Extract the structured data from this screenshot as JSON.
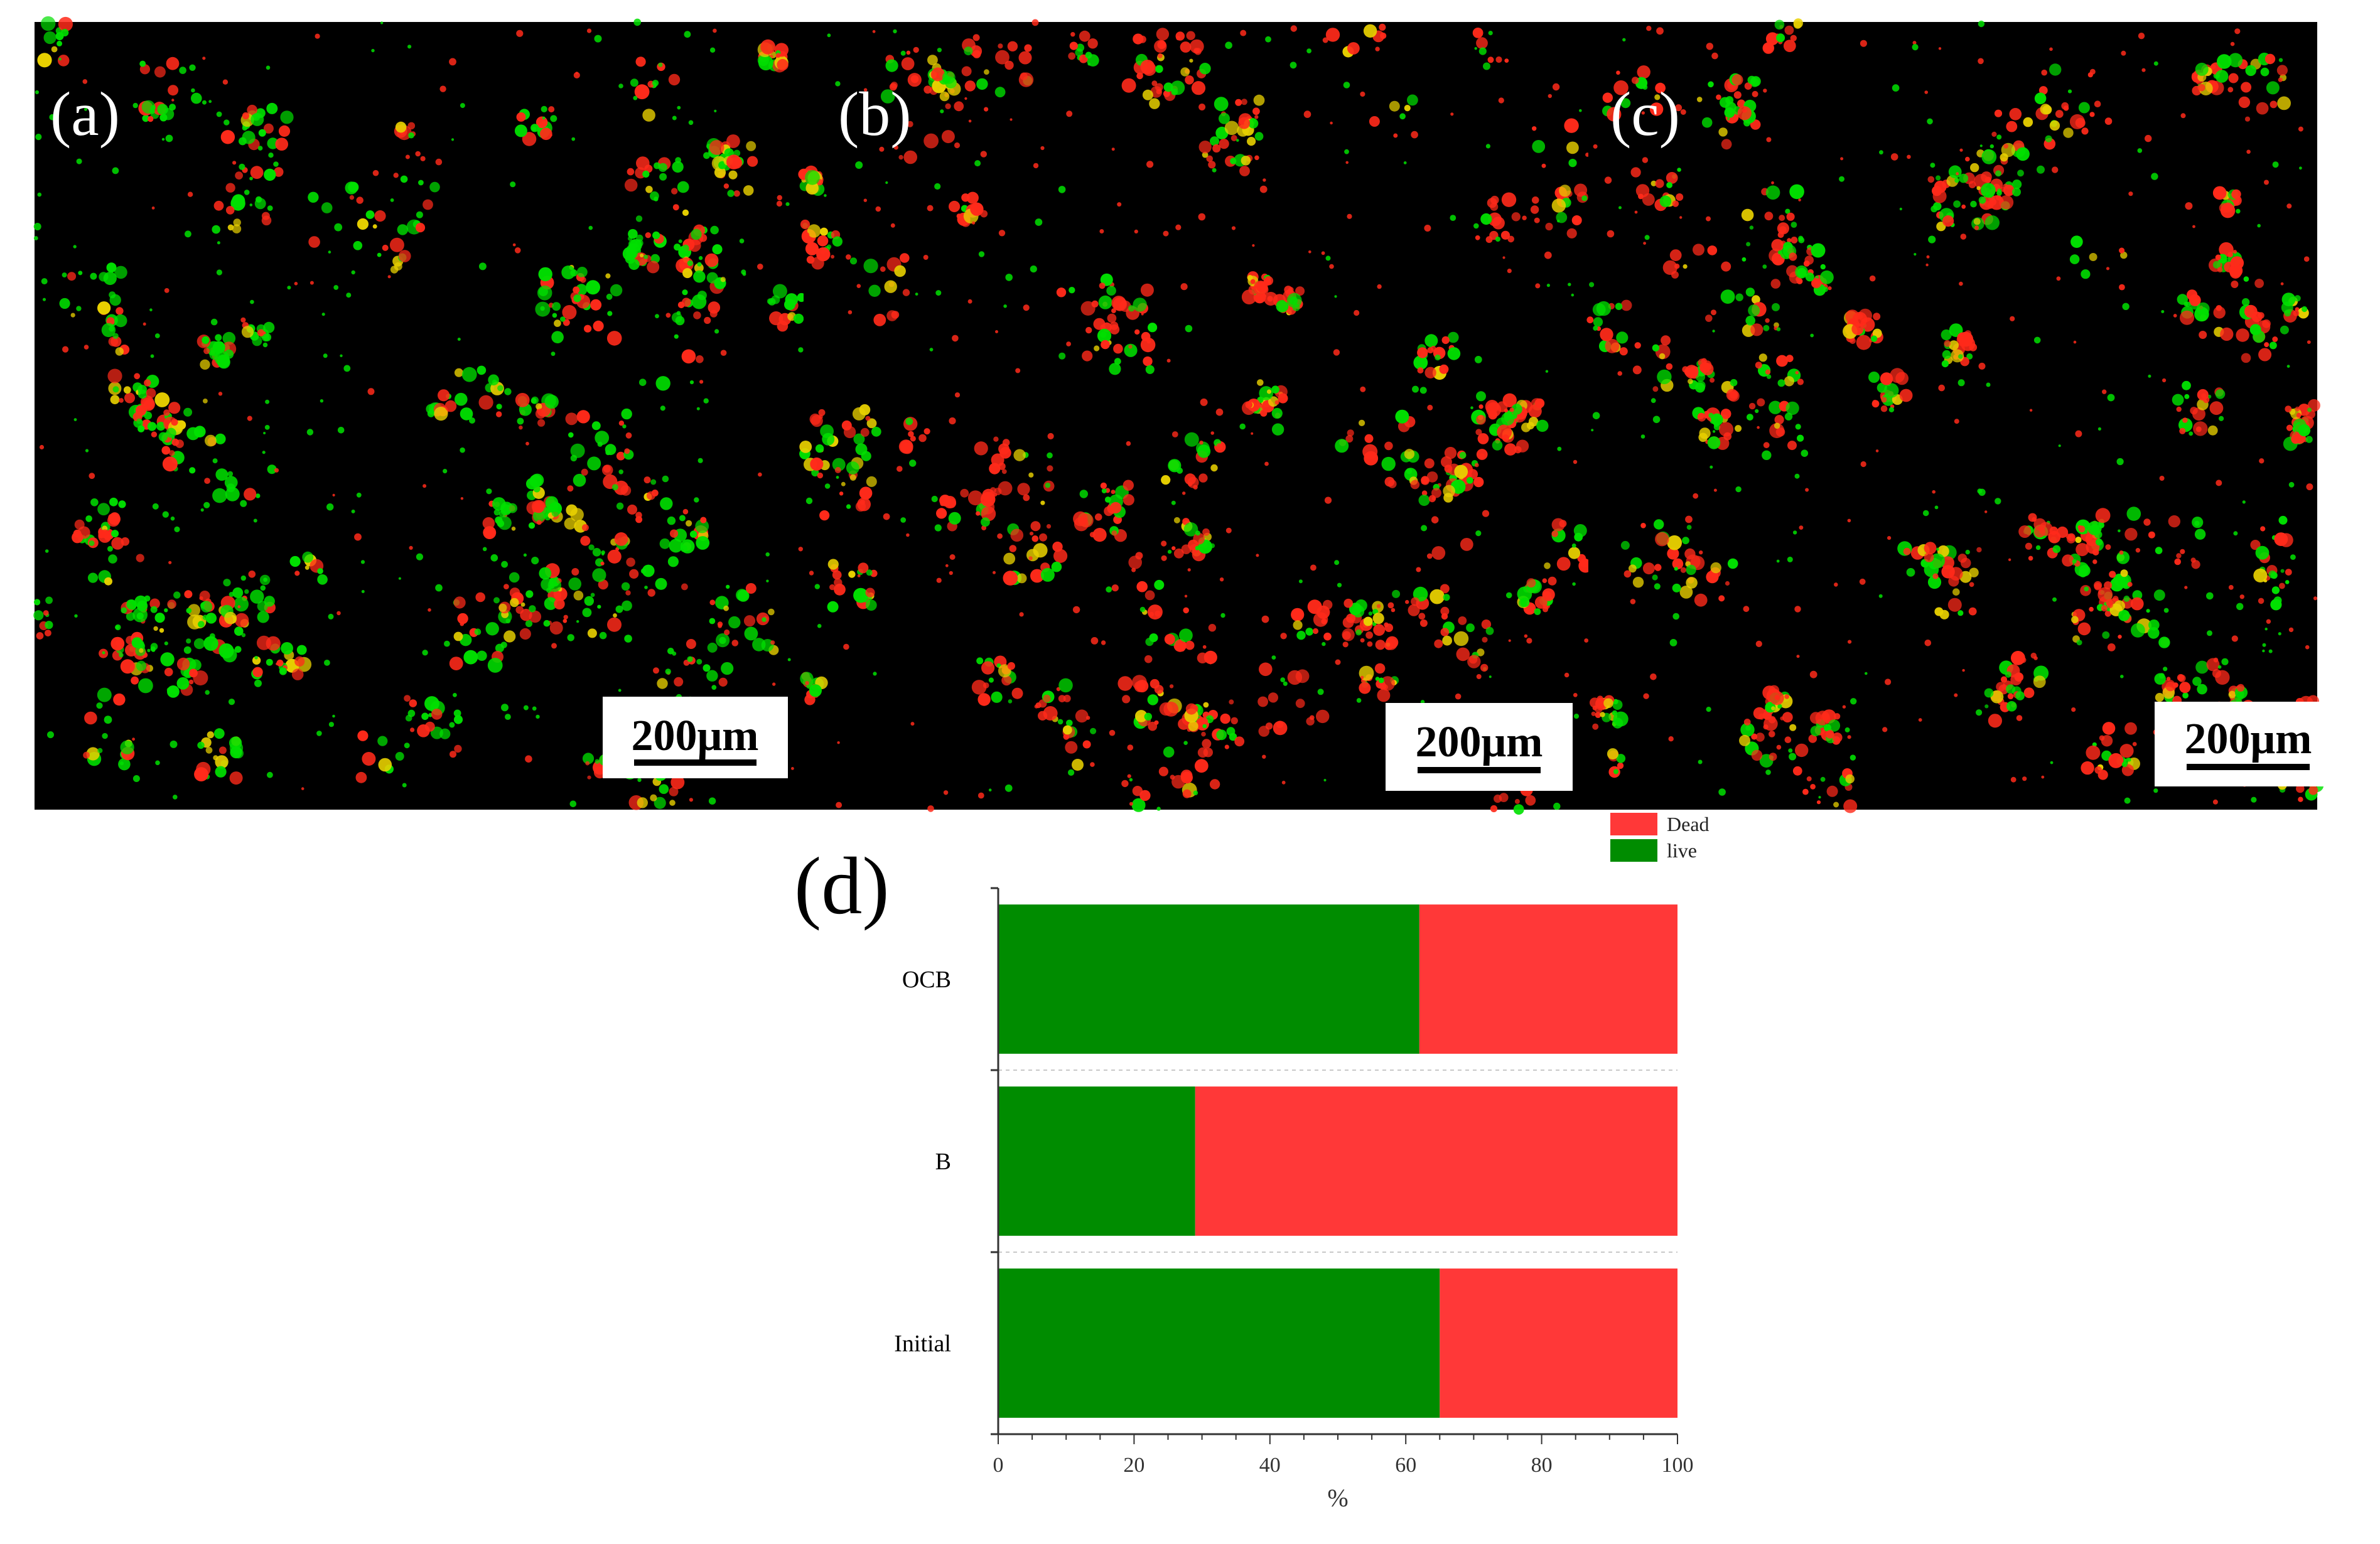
{
  "panels": [
    {
      "label": "(a)",
      "scale_bar": "200μm"
    },
    {
      "label": "(b)",
      "scale_bar": "200μm"
    },
    {
      "label": "(c)",
      "scale_bar": "200μm"
    }
  ],
  "chart_data": {
    "panel_label": "(d)",
    "type": "bar",
    "orientation": "horizontal",
    "stacked": true,
    "categories": [
      "OCB",
      "B",
      "Initial"
    ],
    "series": [
      {
        "name": "live",
        "color": "#008C00",
        "values": [
          62,
          29,
          65
        ]
      },
      {
        "name": "Dead",
        "color": "#FF3838",
        "values": [
          38,
          71,
          35
        ]
      }
    ],
    "xlabel": "%",
    "xlim": [
      0,
      100
    ],
    "xticks": [
      0,
      20,
      40,
      60,
      80,
      100
    ],
    "legend": {
      "position": "top-right",
      "entries": [
        "Dead",
        "live"
      ]
    }
  },
  "colors": {
    "live_stain": "#00E000",
    "dead_stain": "#FF2A1A",
    "merge": "#E8D000",
    "background": "#000000"
  }
}
